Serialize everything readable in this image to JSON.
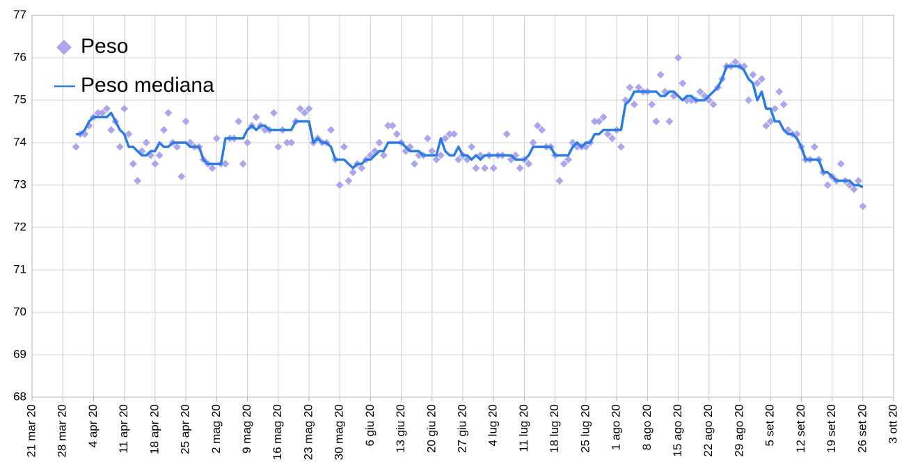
{
  "chart_data": {
    "type": "scatter-line",
    "x": [
      "2020-03-31",
      "2020-04-01",
      "2020-04-02",
      "2020-04-03",
      "2020-04-04",
      "2020-04-05",
      "2020-04-06",
      "2020-04-07",
      "2020-04-08",
      "2020-04-09",
      "2020-04-10",
      "2020-04-11",
      "2020-04-12",
      "2020-04-13",
      "2020-04-14",
      "2020-04-15",
      "2020-04-16",
      "2020-04-17",
      "2020-04-18",
      "2020-04-19",
      "2020-04-20",
      "2020-04-21",
      "2020-04-22",
      "2020-04-23",
      "2020-04-24",
      "2020-04-25",
      "2020-04-26",
      "2020-04-27",
      "2020-04-28",
      "2020-04-29",
      "2020-04-30",
      "2020-05-01",
      "2020-05-02",
      "2020-05-03",
      "2020-05-04",
      "2020-05-05",
      "2020-05-06",
      "2020-05-07",
      "2020-05-08",
      "2020-05-09",
      "2020-05-10",
      "2020-05-11",
      "2020-05-12",
      "2020-05-13",
      "2020-05-14",
      "2020-05-15",
      "2020-05-16",
      "2020-05-17",
      "2020-05-18",
      "2020-05-19",
      "2020-05-20",
      "2020-05-21",
      "2020-05-22",
      "2020-05-23",
      "2020-05-24",
      "2020-05-25",
      "2020-05-26",
      "2020-05-27",
      "2020-05-28",
      "2020-05-29",
      "2020-05-30",
      "2020-05-31",
      "2020-06-01",
      "2020-06-02",
      "2020-06-03",
      "2020-06-04",
      "2020-06-05",
      "2020-06-06",
      "2020-06-07",
      "2020-06-08",
      "2020-06-09",
      "2020-06-10",
      "2020-06-11",
      "2020-06-12",
      "2020-06-13",
      "2020-06-14",
      "2020-06-15",
      "2020-06-16",
      "2020-06-17",
      "2020-06-18",
      "2020-06-19",
      "2020-06-20",
      "2020-06-21",
      "2020-06-22",
      "2020-06-23",
      "2020-06-24",
      "2020-06-25",
      "2020-06-26",
      "2020-06-27",
      "2020-06-28",
      "2020-06-29",
      "2020-06-30",
      "2020-07-01",
      "2020-07-02",
      "2020-07-03",
      "2020-07-04",
      "2020-07-05",
      "2020-07-06",
      "2020-07-07",
      "2020-07-08",
      "2020-07-09",
      "2020-07-10",
      "2020-07-11",
      "2020-07-12",
      "2020-07-13",
      "2020-07-14",
      "2020-07-15",
      "2020-07-16",
      "2020-07-17",
      "2020-07-18",
      "2020-07-19",
      "2020-07-20",
      "2020-07-21",
      "2020-07-22",
      "2020-07-23",
      "2020-07-24",
      "2020-07-25",
      "2020-07-26",
      "2020-07-27",
      "2020-07-28",
      "2020-07-29",
      "2020-07-30",
      "2020-07-31",
      "2020-08-01",
      "2020-08-02",
      "2020-08-03",
      "2020-08-04",
      "2020-08-05",
      "2020-08-06",
      "2020-08-07",
      "2020-08-08",
      "2020-08-09",
      "2020-08-10",
      "2020-08-11",
      "2020-08-12",
      "2020-08-13",
      "2020-08-14",
      "2020-08-15",
      "2020-08-16",
      "2020-08-17",
      "2020-08-18",
      "2020-08-19",
      "2020-08-20",
      "2020-08-21",
      "2020-08-22",
      "2020-08-23",
      "2020-08-24",
      "2020-08-25",
      "2020-08-26",
      "2020-08-27",
      "2020-08-28",
      "2020-08-29",
      "2020-08-30",
      "2020-08-31",
      "2020-09-01",
      "2020-09-02",
      "2020-09-03",
      "2020-09-04",
      "2020-09-05",
      "2020-09-06",
      "2020-09-07",
      "2020-09-08",
      "2020-09-09",
      "2020-09-10",
      "2020-09-11",
      "2020-09-12",
      "2020-09-13",
      "2020-09-14",
      "2020-09-15",
      "2020-09-16",
      "2020-09-17",
      "2020-09-18",
      "2020-09-19",
      "2020-09-20",
      "2020-09-21",
      "2020-09-22",
      "2020-09-23",
      "2020-09-24",
      "2020-09-25",
      "2020-09-26"
    ],
    "series": [
      {
        "name": "Peso",
        "color": "#aaa7ee",
        "kind": "markers",
        "values": [
          73.9,
          74.2,
          74.2,
          74.4,
          74.6,
          74.7,
          74.7,
          74.8,
          74.3,
          74.5,
          73.9,
          74.8,
          74.2,
          73.5,
          73.1,
          73.8,
          74.0,
          73.7,
          73.5,
          73.7,
          74.3,
          74.7,
          74.0,
          73.9,
          73.2,
          74.5,
          74.0,
          73.9,
          73.9,
          73.6,
          73.5,
          73.4,
          74.1,
          73.5,
          73.5,
          74.1,
          74.1,
          74.5,
          73.5,
          74.0,
          74.4,
          74.6,
          74.4,
          74.3,
          74.3,
          74.7,
          73.9,
          74.3,
          74.0,
          74.0,
          74.5,
          74.8,
          74.7,
          74.8,
          74.0,
          74.1,
          74.0,
          74.0,
          74.3,
          73.6,
          73.0,
          73.9,
          73.1,
          73.3,
          73.5,
          73.4,
          73.6,
          73.7,
          73.8,
          74.0,
          73.7,
          74.4,
          74.4,
          74.2,
          74.0,
          73.8,
          73.9,
          73.5,
          73.7,
          73.7,
          74.1,
          73.8,
          73.6,
          73.7,
          74.1,
          74.2,
          74.2,
          73.6,
          73.7,
          73.6,
          73.9,
          73.4,
          73.7,
          73.4,
          73.7,
          73.4,
          73.7,
          73.7,
          74.2,
          73.6,
          73.7,
          73.4,
          73.6,
          73.5,
          74.0,
          74.4,
          74.3,
          73.9,
          73.9,
          73.7,
          73.1,
          73.5,
          73.6,
          74.0,
          73.9,
          73.9,
          73.9,
          74.0,
          74.5,
          74.5,
          74.6,
          74.2,
          74.1,
          74.3,
          73.9,
          75.0,
          75.3,
          74.9,
          75.3,
          75.2,
          75.2,
          74.9,
          74.5,
          75.6,
          75.2,
          74.5,
          75.1,
          76.0,
          75.4,
          75.0,
          75.0,
          75.0,
          75.2,
          75.1,
          75.0,
          74.9,
          75.3,
          75.5,
          75.8,
          75.8,
          75.9,
          75.8,
          75.8,
          75.0,
          75.6,
          75.4,
          75.5,
          74.4,
          74.5,
          74.8,
          75.2,
          74.9,
          74.3,
          74.2,
          74.2,
          73.9,
          73.6,
          73.6,
          73.9,
          73.6,
          73.3,
          73.0,
          73.2,
          73.1,
          73.5,
          73.1,
          73.0,
          72.9,
          73.1,
          72.5
        ]
      },
      {
        "name": "Peso mediana",
        "color": "#2a7be4",
        "kind": "line",
        "values": [
          74.2,
          74.2,
          74.3,
          74.5,
          74.6,
          74.6,
          74.6,
          74.6,
          74.7,
          74.5,
          74.3,
          74.2,
          73.9,
          73.9,
          73.8,
          73.7,
          73.7,
          73.8,
          73.8,
          74.0,
          73.9,
          73.9,
          74.0,
          74.0,
          74.0,
          74.0,
          73.9,
          73.9,
          73.9,
          73.6,
          73.5,
          73.5,
          73.5,
          73.5,
          74.1,
          74.1,
          74.1,
          74.1,
          74.1,
          74.3,
          74.4,
          74.3,
          74.4,
          74.4,
          74.3,
          74.3,
          74.3,
          74.3,
          74.3,
          74.3,
          74.5,
          74.5,
          74.5,
          74.5,
          74.0,
          74.1,
          74.0,
          74.0,
          73.9,
          73.6,
          73.6,
          73.6,
          73.5,
          73.4,
          73.5,
          73.5,
          73.6,
          73.6,
          73.7,
          73.8,
          73.8,
          74.0,
          74.0,
          74.0,
          74.0,
          73.9,
          73.8,
          73.8,
          73.8,
          73.7,
          73.7,
          73.7,
          73.7,
          74.1,
          73.8,
          73.7,
          73.7,
          73.9,
          73.7,
          73.7,
          73.6,
          73.7,
          73.6,
          73.7,
          73.7,
          73.7,
          73.7,
          73.7,
          73.7,
          73.7,
          73.6,
          73.6,
          73.6,
          73.7,
          73.9,
          73.9,
          73.9,
          73.9,
          73.9,
          73.7,
          73.7,
          73.7,
          73.7,
          73.9,
          74.0,
          73.9,
          74.0,
          74.0,
          74.2,
          74.2,
          74.3,
          74.3,
          74.3,
          74.3,
          74.3,
          74.9,
          75.0,
          75.2,
          75.2,
          75.2,
          75.2,
          75.2,
          75.2,
          75.1,
          75.1,
          75.2,
          75.2,
          75.1,
          75.0,
          75.1,
          75.1,
          75.0,
          75.0,
          75.0,
          75.1,
          75.2,
          75.3,
          75.5,
          75.8,
          75.8,
          75.8,
          75.8,
          75.7,
          75.5,
          75.4,
          75.0,
          75.2,
          74.8,
          74.8,
          74.5,
          74.5,
          74.3,
          74.2,
          74.2,
          74.1,
          73.9,
          73.6,
          73.6,
          73.6,
          73.6,
          73.3,
          73.3,
          73.2,
          73.1,
          73.1,
          73.1,
          73.1,
          73.0,
          73.0,
          72.95
        ]
      }
    ],
    "xlim": [
      "2020-03-21",
      "2020-10-03"
    ],
    "xticks": [
      {
        "value": "2020-03-21",
        "label": "21 mar 20"
      },
      {
        "value": "2020-03-28",
        "label": "28 mar 20"
      },
      {
        "value": "2020-04-04",
        "label": "4 apr 20"
      },
      {
        "value": "2020-04-11",
        "label": "11 apr 20"
      },
      {
        "value": "2020-04-18",
        "label": "18 apr 20"
      },
      {
        "value": "2020-04-25",
        "label": "25 apr 20"
      },
      {
        "value": "2020-05-02",
        "label": "2 mag 20"
      },
      {
        "value": "2020-05-09",
        "label": "9 mag 20"
      },
      {
        "value": "2020-05-16",
        "label": "16 mag 20"
      },
      {
        "value": "2020-05-23",
        "label": "23 mag 20"
      },
      {
        "value": "2020-05-30",
        "label": "30 mag 20"
      },
      {
        "value": "2020-06-06",
        "label": "6 giu 20"
      },
      {
        "value": "2020-06-13",
        "label": "13 giu 20"
      },
      {
        "value": "2020-06-20",
        "label": "20 giu 20"
      },
      {
        "value": "2020-06-27",
        "label": "27 giu 20"
      },
      {
        "value": "2020-07-04",
        "label": "4 lug 20"
      },
      {
        "value": "2020-07-11",
        "label": "11 lug 20"
      },
      {
        "value": "2020-07-18",
        "label": "18 lug 20"
      },
      {
        "value": "2020-07-25",
        "label": "25 lug 20"
      },
      {
        "value": "2020-08-01",
        "label": "1 ago 20"
      },
      {
        "value": "2020-08-08",
        "label": "8 ago 20"
      },
      {
        "value": "2020-08-15",
        "label": "15 ago 20"
      },
      {
        "value": "2020-08-22",
        "label": "22 ago 20"
      },
      {
        "value": "2020-08-29",
        "label": "29 ago 20"
      },
      {
        "value": "2020-09-05",
        "label": "5 set 20"
      },
      {
        "value": "2020-09-12",
        "label": "12 set 20"
      },
      {
        "value": "2020-09-19",
        "label": "19 set 20"
      },
      {
        "value": "2020-09-26",
        "label": "26 set 20"
      },
      {
        "value": "2020-10-03",
        "label": "3 ott 20"
      }
    ],
    "ylim": [
      68,
      77
    ],
    "yticks": [
      68,
      69,
      70,
      71,
      72,
      73,
      74,
      75,
      76,
      77
    ],
    "grid": true,
    "legend": "upper-left"
  }
}
